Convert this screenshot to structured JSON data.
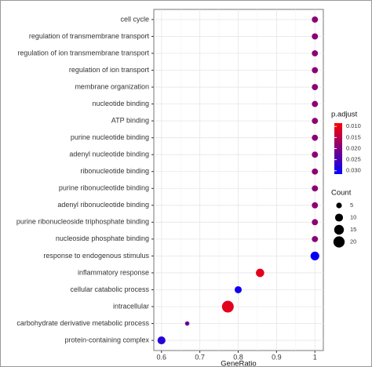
{
  "chart_data": {
    "type": "dot",
    "x_label": "GeneRatio",
    "categories": [
      "cell cycle",
      "regulation of transmembrane transport",
      "regulation of ion transmembrane transport",
      "regulation of ion transport",
      "membrane organization",
      "nucleotide binding",
      "ATP binding",
      "purine nucleotide binding",
      "adenyl nucleotide binding",
      "ribonucleotide binding",
      "purine ribonucleotide binding",
      "adenyl ribonucleotide binding",
      "purine ribonucleoside triphosphate binding",
      "nucleoside phosphate binding",
      "response to endogenous stimulus",
      "inflammatory response",
      "cellular catabolic process",
      "intracellular",
      "carbohydrate derivative metabolic process",
      "protein-containing complex"
    ],
    "x": [
      1.0,
      1.0,
      1.0,
      1.0,
      1.0,
      1.0,
      1.0,
      1.0,
      1.0,
      1.0,
      1.0,
      1.0,
      1.0,
      1.0,
      1.0,
      0.857,
      0.8,
      0.773,
      0.667,
      0.6
    ],
    "count": [
      6,
      6,
      6,
      6,
      6,
      6,
      6,
      6,
      6,
      6,
      6,
      6,
      6,
      6,
      12,
      11,
      8,
      22,
      3,
      10
    ],
    "p_adjust": [
      0.019,
      0.019,
      0.019,
      0.019,
      0.019,
      0.019,
      0.019,
      0.019,
      0.019,
      0.019,
      0.019,
      0.019,
      0.019,
      0.019,
      0.031,
      0.011,
      0.03,
      0.011,
      0.022,
      0.028
    ],
    "xlim": [
      0.58,
      1.022
    ],
    "xticks": [
      0.6,
      0.7,
      0.8,
      0.9,
      1.0
    ],
    "grid": true,
    "color_title": "p.adjust",
    "low_color": "#ff0000",
    "high_color": "#0000ff",
    "colorlim": [
      0.0085,
      0.0315
    ],
    "colorticks": [
      {
        "value": 0.01,
        "label": "0.010"
      },
      {
        "value": 0.015,
        "label": "0.015"
      },
      {
        "value": 0.02,
        "label": "0.020"
      },
      {
        "value": 0.025,
        "label": "0.025"
      },
      {
        "value": 0.03,
        "label": "0.030"
      }
    ],
    "size_title": "Count",
    "size_ticks": [
      5,
      10,
      15,
      20
    ]
  }
}
